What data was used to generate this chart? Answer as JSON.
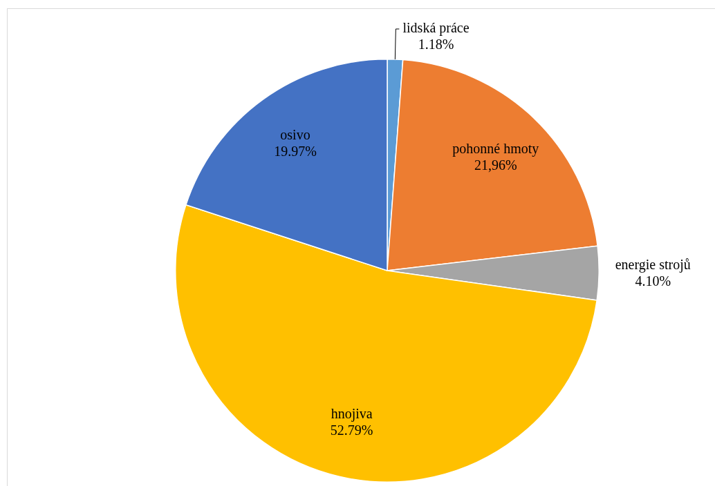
{
  "chart_data": {
    "type": "pie",
    "categories": [
      "lidská práce",
      "pohonné hmoty",
      "energie strojů",
      "hnojiva",
      "osivo"
    ],
    "values": [
      1.18,
      21.96,
      4.1,
      52.79,
      19.97
    ],
    "colors": [
      "#5b9bd5",
      "#ed7d31",
      "#a5a5a5",
      "#ffc000",
      "#4472c4"
    ],
    "value_labels": [
      "1.18%",
      "21,96%",
      "4.10%",
      "52.79%",
      "19.97%"
    ],
    "legend": false
  }
}
